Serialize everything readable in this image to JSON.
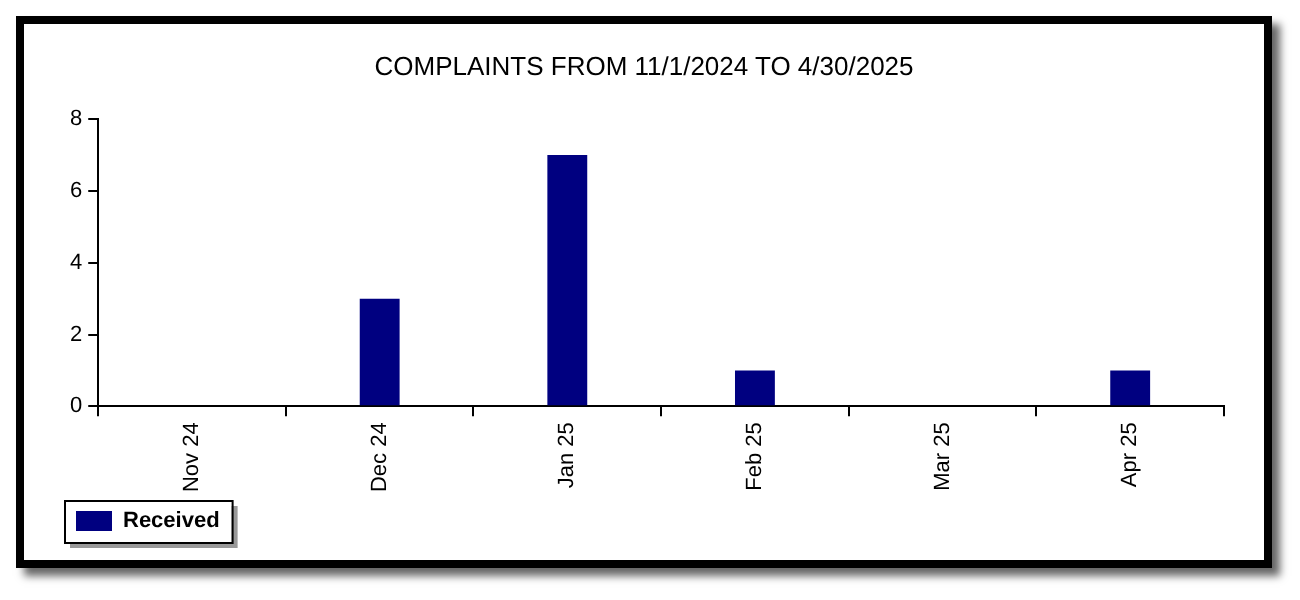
{
  "chart_data": {
    "type": "bar",
    "title": "COMPLAINTS FROM 11/1/2024 TO 4/30/2025",
    "categories": [
      "Nov 24",
      "Dec 24",
      "Jan 25",
      "Feb 25",
      "Mar 25",
      "Apr 25"
    ],
    "series": [
      {
        "name": "Received",
        "color": "#000080",
        "values": [
          0,
          3,
          7,
          1,
          0,
          1
        ]
      }
    ],
    "ylim": [
      0,
      8
    ],
    "yticks": [
      0,
      2,
      4,
      6,
      8
    ],
    "grid": false,
    "legend": "bottom left"
  }
}
